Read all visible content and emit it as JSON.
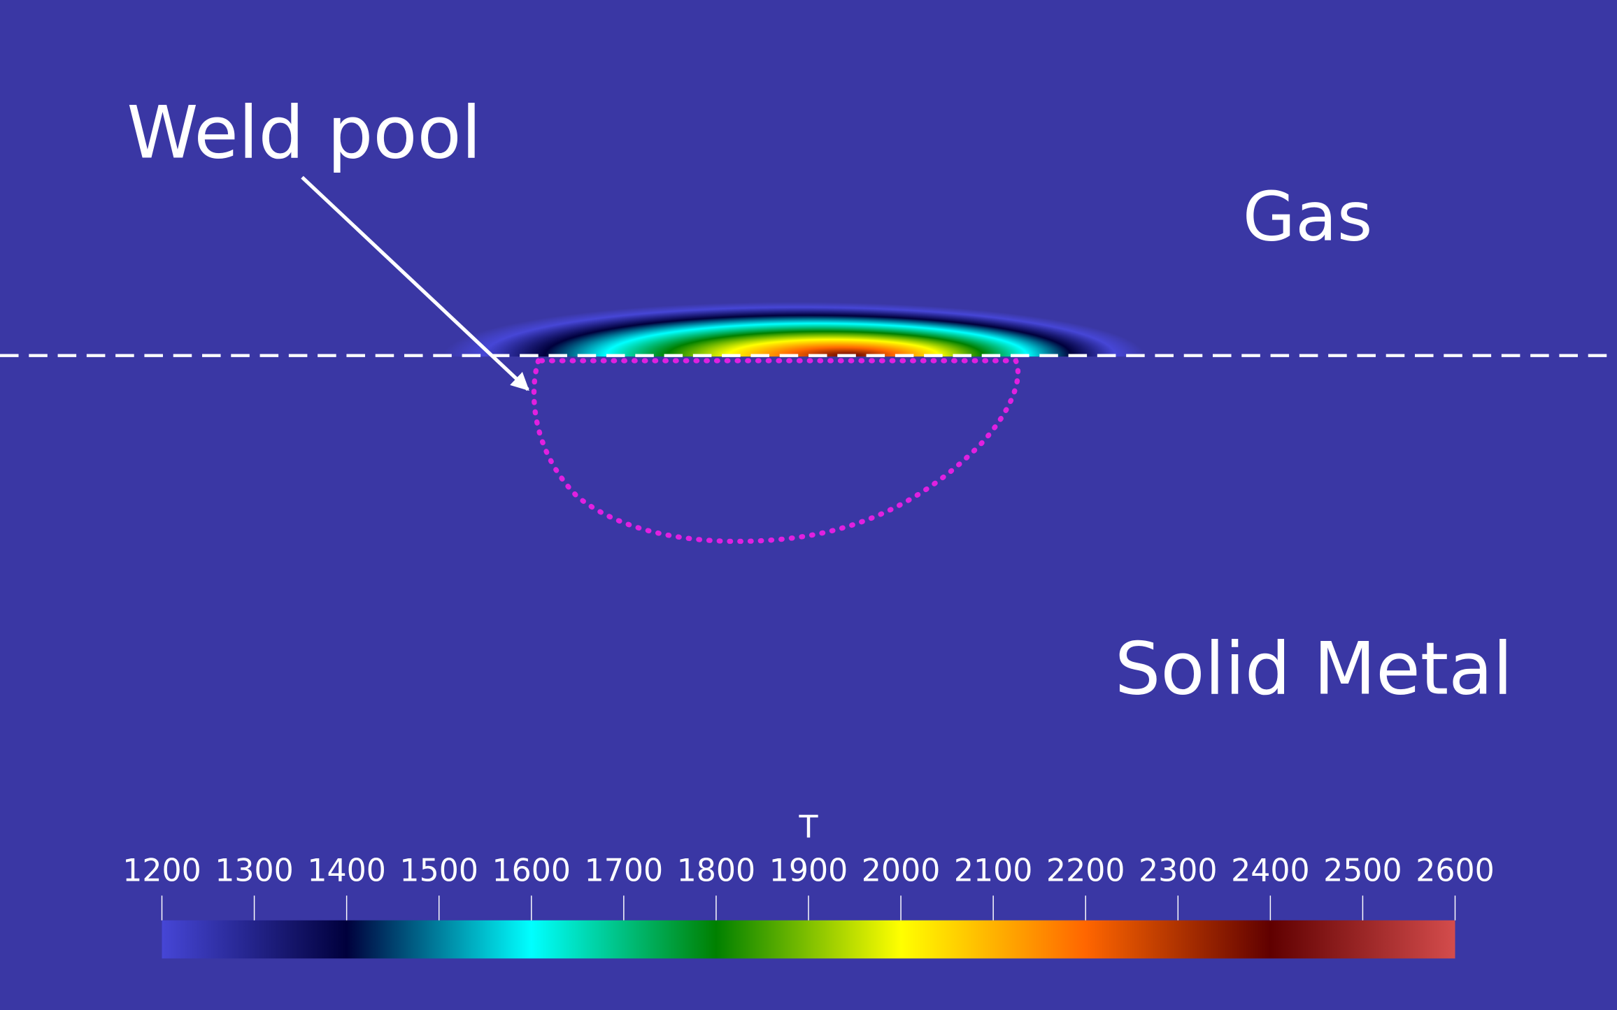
{
  "chart_data": {
    "type": "colormap",
    "annotations": [
      "Weld pool",
      "Gas",
      "Solid Metal"
    ],
    "background": "#3a37a4",
    "colorbar": {
      "title": "T",
      "clim": [
        1200,
        2600
      ],
      "ticks": [
        1200,
        1300,
        1400,
        1500,
        1600,
        1700,
        1800,
        1900,
        2000,
        2100,
        2200,
        2300,
        2400,
        2500,
        2600
      ],
      "colormap": [
        "#4646d6",
        "#00003c",
        "#00ffff",
        "#008000",
        "#ffff00",
        "#ff6600",
        "#600000",
        "#d44c4c"
      ]
    }
  }
}
